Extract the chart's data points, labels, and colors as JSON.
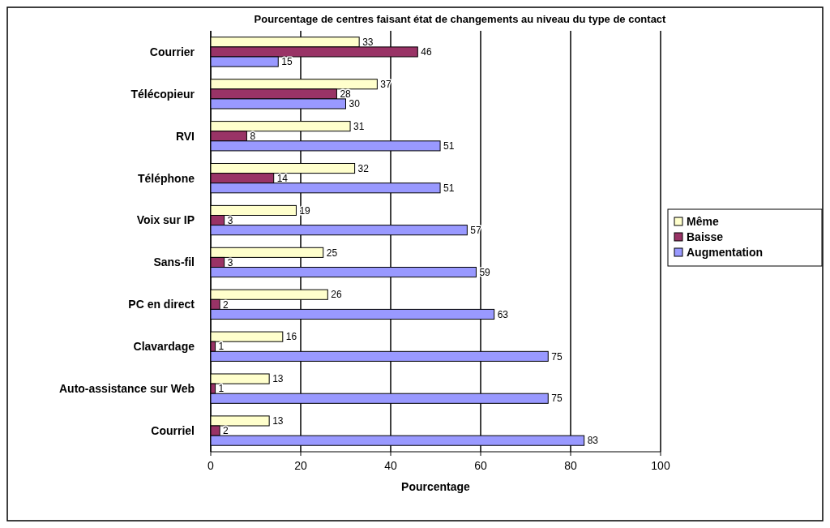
{
  "chart_data": {
    "type": "bar",
    "orientation": "horizontal",
    "title": "Pourcentage de centres faisant état de changements au niveau du type de contact",
    "xlabel": "Pourcentage",
    "categories": [
      "Courrier",
      "Télécopieur",
      "RVI",
      "Téléphone",
      "Voix sur IP",
      "Sans-fil",
      "PC en direct",
      "Clavardage",
      "Auto-assistance sur Web",
      "Courriel"
    ],
    "series": [
      {
        "name": "Même",
        "color": "#ffffcc",
        "values": [
          33,
          37,
          31,
          32,
          19,
          25,
          26,
          16,
          13,
          13
        ]
      },
      {
        "name": "Baisse",
        "color": "#993366",
        "values": [
          46,
          28,
          8,
          14,
          3,
          3,
          2,
          1,
          1,
          2
        ]
      },
      {
        "name": "Augmentation",
        "color": "#9999ff",
        "values": [
          15,
          30,
          51,
          51,
          57,
          59,
          63,
          75,
          75,
          83
        ]
      }
    ],
    "xlim": [
      0,
      100
    ],
    "xticks": [
      0,
      20,
      40,
      60,
      80,
      100
    ],
    "grid": "x",
    "legend": "right",
    "data_labels": true
  }
}
